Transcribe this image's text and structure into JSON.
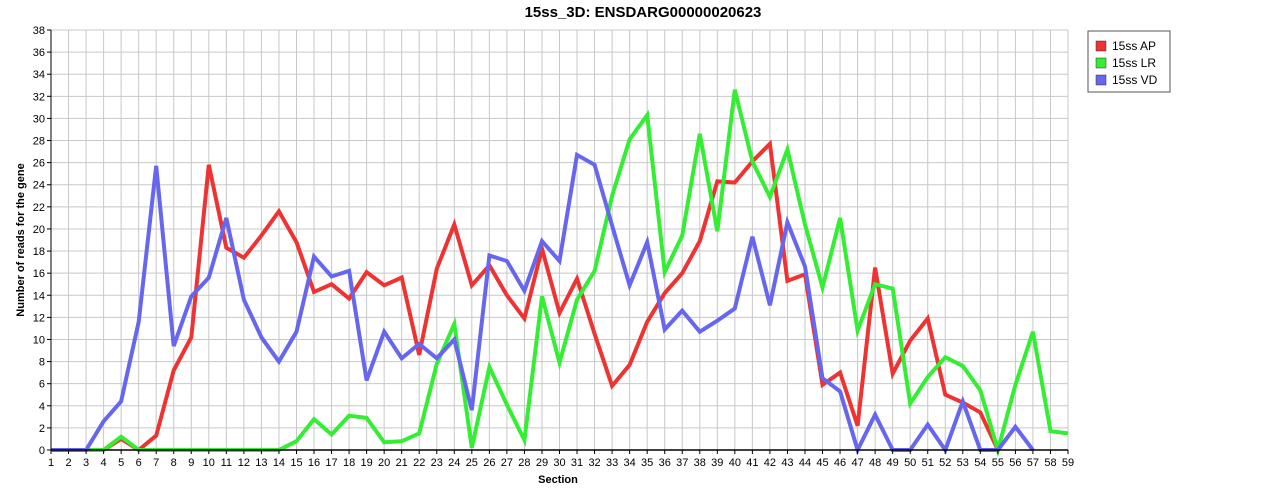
{
  "chart_data": {
    "type": "line",
    "title": "15ss_3D: ENSDARG00000020623",
    "xlabel": "Section",
    "ylabel": "Number of reads for the gene",
    "xlim": [
      1,
      59
    ],
    "ylim": [
      0,
      38
    ],
    "y_tick_step": 2,
    "grid": true,
    "legend_position": "top-right",
    "x": [
      1,
      2,
      3,
      4,
      5,
      6,
      7,
      8,
      9,
      10,
      11,
      12,
      13,
      14,
      15,
      16,
      17,
      18,
      19,
      20,
      21,
      22,
      23,
      24,
      25,
      26,
      27,
      28,
      29,
      30,
      31,
      32,
      33,
      34,
      35,
      36,
      37,
      38,
      39,
      40,
      41,
      42,
      43,
      44,
      45,
      46,
      47,
      48,
      49,
      50,
      51,
      52,
      53,
      54,
      55,
      56,
      57,
      58,
      59
    ],
    "series": [
      {
        "name": "15ss AP",
        "color": "#ee3333",
        "values": [
          0,
          0,
          0,
          0,
          1,
          0,
          1.3,
          7.2,
          10.2,
          25.8,
          18.3,
          17.4,
          19.4,
          21.6,
          18.8,
          14.3,
          15,
          13.7,
          16.1,
          14.9,
          15.6,
          8.6,
          16.4,
          20.4,
          14.9,
          16.7,
          14,
          11.9,
          18.2,
          12.4,
          15.5,
          10.5,
          5.8,
          7.7,
          11.6,
          14.2,
          16,
          18.9,
          24.3,
          24.2,
          26.1,
          27.7,
          15.3,
          15.9,
          5.9,
          7,
          2.2,
          16.5,
          6.9,
          9.9,
          11.9,
          5,
          4.3,
          3.4,
          0,
          null,
          null,
          null,
          null
        ]
      },
      {
        "name": "15ss LR",
        "color": "#33ee33",
        "values": [
          0,
          0,
          0,
          0,
          1.2,
          0,
          0,
          0,
          0,
          0,
          0,
          0,
          0,
          0,
          0.8,
          2.8,
          1.4,
          3.1,
          2.9,
          0.7,
          0.8,
          1.5,
          7.8,
          11.4,
          0.2,
          7.5,
          4.1,
          0.9,
          13.9,
          7.9,
          13.6,
          16.2,
          23,
          28.1,
          30.3,
          16.1,
          19.4,
          28.6,
          19.8,
          32.6,
          26.1,
          22.9,
          27.2,
          20.4,
          14.7,
          21,
          10.8,
          15,
          14.6,
          4.2,
          6.6,
          8.4,
          7.6,
          5.4,
          0,
          5.9,
          10.7,
          1.7,
          1.5
        ]
      },
      {
        "name": "15ss VD",
        "color": "#6666ee",
        "values": [
          0,
          0,
          0,
          2.6,
          4.4,
          11.6,
          25.7,
          9.4,
          13.9,
          15.6,
          21,
          13.6,
          10.2,
          8,
          10.7,
          17.5,
          15.7,
          16.2,
          6.3,
          10.7,
          8.3,
          9.6,
          8.3,
          10,
          3.6,
          17.6,
          17.1,
          14.4,
          18.9,
          17.1,
          26.7,
          25.8,
          20.3,
          14.9,
          18.8,
          10.9,
          12.6,
          10.7,
          11.7,
          12.8,
          19.3,
          13.1,
          20.6,
          16.6,
          6.5,
          5.3,
          0,
          3.2,
          0,
          0,
          2.3,
          0,
          4.4,
          0,
          0,
          2.1,
          0,
          null,
          null
        ]
      }
    ]
  }
}
